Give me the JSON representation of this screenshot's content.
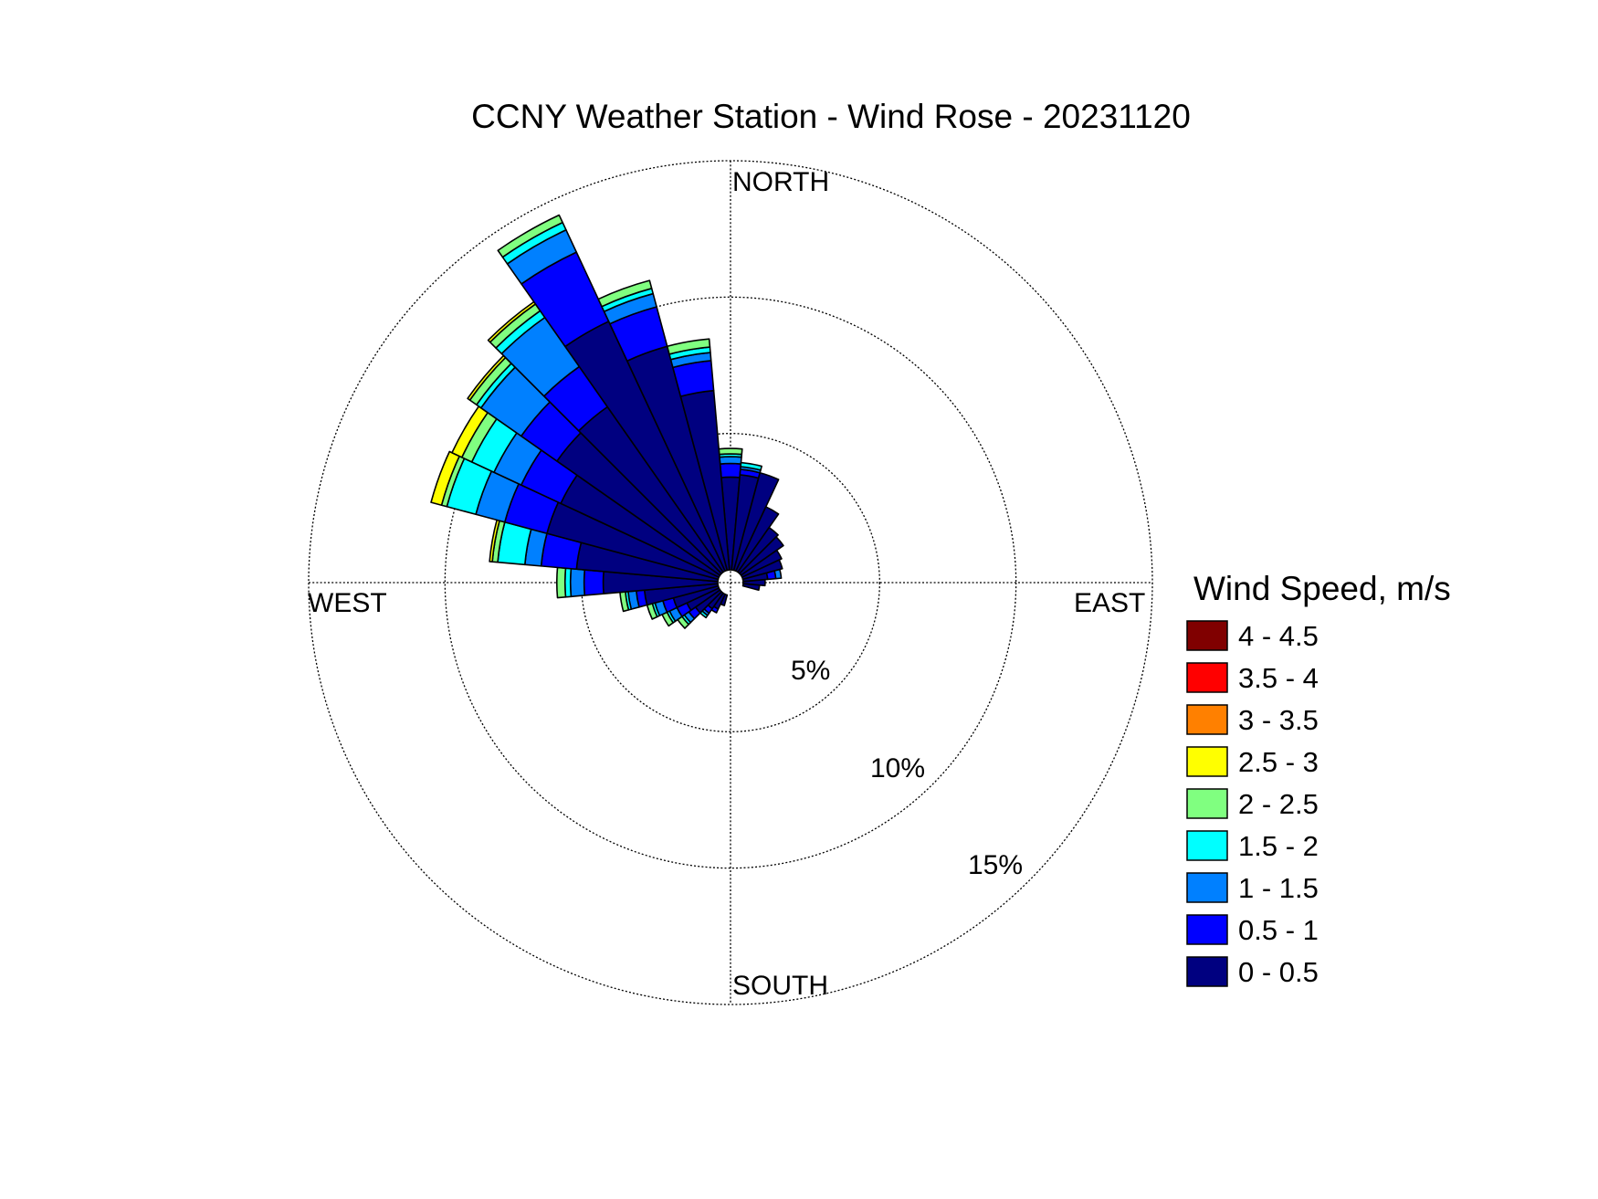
{
  "chart_data": {
    "type": "windrose",
    "title": "CCNY Weather Station - Wind Rose - 20231120",
    "compass": {
      "north": "NORTH",
      "south": "SOUTH",
      "east": "EAST",
      "west": "WEST"
    },
    "radial_axis": {
      "unit": "%",
      "max": 15,
      "ticks": [
        5,
        10,
        15
      ],
      "tick_labels": [
        "5%",
        "10%",
        "15%"
      ]
    },
    "grid": true,
    "legend": {
      "title": "Wind Speed, m/s",
      "placement": "right",
      "bins": [
        {
          "label": "4 - 4.5",
          "color": "#800000"
        },
        {
          "label": "3.5 - 4",
          "color": "#ff0000"
        },
        {
          "label": "3 - 3.5",
          "color": "#ff8000"
        },
        {
          "label": "2.5 - 3",
          "color": "#ffff00"
        },
        {
          "label": "2 - 2.5",
          "color": "#80ff80"
        },
        {
          "label": "1.5 - 2",
          "color": "#00ffff"
        },
        {
          "label": "1 - 1.5",
          "color": "#0080ff"
        },
        {
          "label": "0.5 - 1",
          "color": "#0000ff"
        },
        {
          "label": "0 - 0.5",
          "color": "#000080"
        }
      ]
    },
    "bin_order_inner_to_outer": [
      "0 - 0.5",
      "0.5 - 1",
      "1 - 1.5",
      "1.5 - 2",
      "2 - 2.5",
      "2.5 - 3",
      "3 - 3.5",
      "3.5 - 4",
      "4 - 4.5"
    ],
    "sector_width_deg": 10,
    "sectors": [
      {
        "dir": 0,
        "values": [
          3.4,
          0.5,
          0.25,
          0.1,
          0.2
        ]
      },
      {
        "dir": 10,
        "values": [
          3.5,
          0.2,
          0.1,
          0.15
        ]
      },
      {
        "dir": 20,
        "values": [
          3.7
        ]
      },
      {
        "dir": 30,
        "values": [
          2.6
        ]
      },
      {
        "dir": 40,
        "values": [
          2.0
        ]
      },
      {
        "dir": 50,
        "values": [
          1.9
        ]
      },
      {
        "dir": 60,
        "values": [
          1.6
        ]
      },
      {
        "dir": 70,
        "values": [
          1.5
        ]
      },
      {
        "dir": 80,
        "values": [
          0.9,
          0.3,
          0.2
        ]
      },
      {
        "dir": 90,
        "values": [
          0.8
        ]
      },
      {
        "dir": 100,
        "values": [
          0.6
        ]
      },
      {
        "dir": 200,
        "values": [
          0.4
        ]
      },
      {
        "dir": 210,
        "values": [
          0.6,
          0.15
        ]
      },
      {
        "dir": 220,
        "values": [
          0.7,
          0.2,
          0.1,
          0.1
        ]
      },
      {
        "dir": 230,
        "values": [
          1.1,
          0.3,
          0.2,
          0.1,
          0.2
        ]
      },
      {
        "dir": 240,
        "values": [
          1.3,
          0.4,
          0.3,
          0.1,
          0.2
        ]
      },
      {
        "dir": 250,
        "values": [
          1.7,
          0.4,
          0.3,
          0.1,
          0.2
        ]
      },
      {
        "dir": 260,
        "values": [
          2.7,
          0.3,
          0.3,
          0.1,
          0.2
        ]
      },
      {
        "dir": 270,
        "values": [
          4.2,
          0.7,
          0.5,
          0.2,
          0.3
        ]
      },
      {
        "dir": 280,
        "values": [
          5.2,
          1.3,
          0.6,
          1.0,
          0.2,
          0.1
        ]
      },
      {
        "dir": 290,
        "values": [
          6.5,
          1.6,
          1.1,
          1.1,
          0.2,
          0.4
        ]
      },
      {
        "dir": 300,
        "values": [
          6.4,
          1.6,
          1.1,
          0.9,
          0.4,
          0.4
        ]
      },
      {
        "dir": 310,
        "values": [
          7.3,
          1.6,
          1.8,
          0.2,
          0.3,
          0.1
        ]
      },
      {
        "dir": 320,
        "values": [
          7.4,
          1.8,
          2.2,
          0.3,
          0.3,
          0.1
        ]
      },
      {
        "dir": 330,
        "values": [
          10.1,
          2.8,
          0.9,
          0.3,
          0.3
        ]
      },
      {
        "dir": 340,
        "values": [
          8.5,
          1.5,
          0.5,
          0.2,
          0.3
        ]
      },
      {
        "dir": 350,
        "values": [
          6.6,
          1.1,
          0.3,
          0.2,
          0.3
        ]
      }
    ]
  }
}
